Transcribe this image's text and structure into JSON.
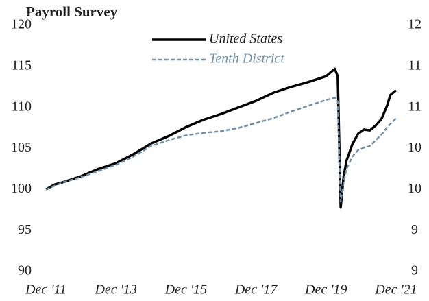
{
  "chart_data": {
    "type": "line",
    "title": "Payroll Survey",
    "xlim": [
      0,
      120
    ],
    "xticks": [
      {
        "value": 0,
        "label": "Dec '11"
      },
      {
        "value": 24,
        "label": "Dec '13"
      },
      {
        "value": 48,
        "label": "Dec '15"
      },
      {
        "value": 72,
        "label": "Dec '17"
      },
      {
        "value": 96,
        "label": "Dec '19"
      },
      {
        "value": 120,
        "label": "Dec '21"
      }
    ],
    "ylim": [
      90,
      120
    ],
    "yticks": [
      90,
      95,
      100,
      105,
      110,
      115,
      120
    ],
    "y2lim": [
      9,
      12
    ],
    "y2ticks": [
      {
        "value": 9,
        "label": "9"
      },
      {
        "value": 9.5,
        "label": "9"
      },
      {
        "value": 10,
        "label": "10"
      },
      {
        "value": 10.5,
        "label": "10"
      },
      {
        "value": 11,
        "label": "11"
      },
      {
        "value": 11.5,
        "label": "11"
      },
      {
        "value": 12,
        "label": "12"
      }
    ],
    "legend": "top",
    "series": [
      {
        "name": "United States",
        "color": "#000000",
        "dash": false,
        "x": [
          0,
          3,
          6,
          12,
          18,
          24,
          30,
          36,
          42,
          48,
          54,
          60,
          66,
          72,
          78,
          84,
          90,
          96,
          98,
          99,
          100,
          101,
          102,
          103,
          105,
          107,
          109,
          111,
          113,
          115,
          117,
          118,
          120
        ],
        "values": [
          100,
          100.6,
          100.9,
          101.6,
          102.5,
          103.2,
          104.3,
          105.6,
          106.5,
          107.6,
          108.5,
          109.2,
          110.0,
          110.8,
          111.8,
          112.5,
          113.1,
          113.8,
          114.4,
          114.7,
          113.8,
          97.8,
          101.5,
          103.5,
          105.5,
          106.8,
          107.3,
          107.2,
          107.8,
          108.6,
          110.3,
          111.5,
          112.1
        ]
      },
      {
        "name": "Tenth District",
        "color": "#6f8fa9",
        "dash": true,
        "x": [
          0,
          6,
          12,
          24,
          30,
          36,
          42,
          48,
          54,
          60,
          66,
          72,
          78,
          84,
          90,
          96,
          99,
          100,
          101,
          102,
          103,
          105,
          107,
          109,
          111,
          113,
          115,
          117,
          120
        ],
        "values": [
          100,
          100.9,
          101.5,
          103,
          104,
          105.3,
          106,
          106.6,
          106.9,
          107.1,
          107.5,
          108.1,
          108.7,
          109.5,
          110.2,
          110.9,
          111.2,
          110.7,
          98.5,
          100.8,
          102.5,
          104,
          104.8,
          105.1,
          105.3,
          106,
          106.7,
          107.6,
          108.7
        ]
      }
    ]
  }
}
